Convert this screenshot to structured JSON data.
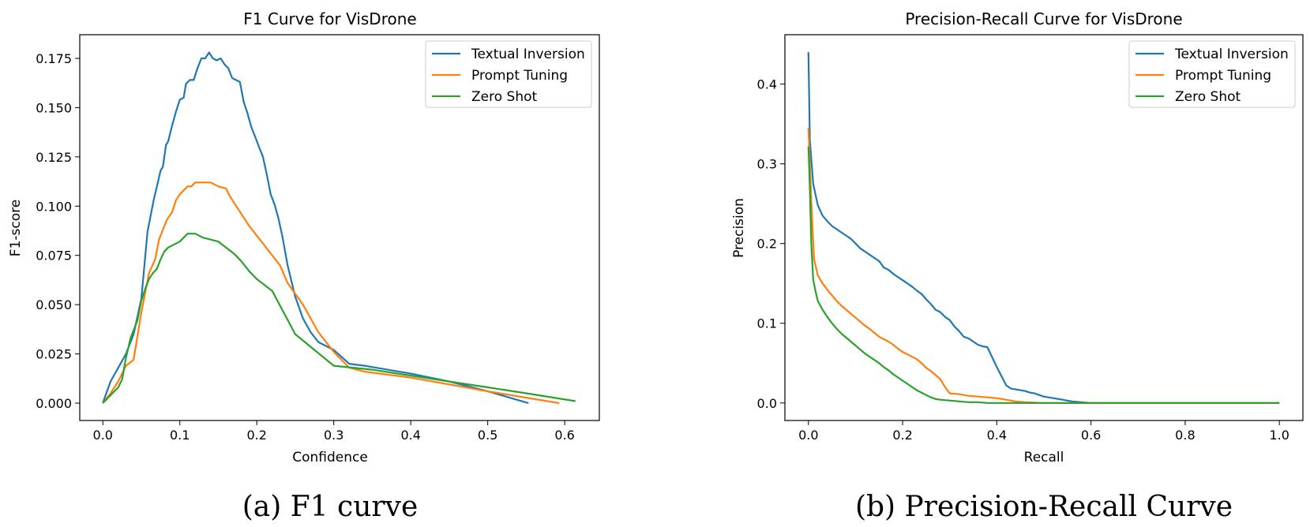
{
  "captions": [
    "(a) F1 curve",
    "(b) Precision-Recall Curve"
  ],
  "colors": {
    "textual_inversion": "#1f77b4",
    "prompt_tuning": "#ff7f0e",
    "zero_shot": "#2ca02c"
  },
  "chart_data": [
    {
      "type": "line",
      "title": "F1 Curve for VisDrone",
      "xlabel": "Confidence",
      "ylabel": "F1-score",
      "xlim": [
        -0.03,
        0.645
      ],
      "ylim": [
        -0.0088,
        0.187
      ],
      "xticks": [
        0.0,
        0.1,
        0.2,
        0.3,
        0.4,
        0.5,
        0.6
      ],
      "xtick_labels": [
        "0.0",
        "0.1",
        "0.2",
        "0.3",
        "0.4",
        "0.5",
        "0.6"
      ],
      "yticks": [
        0.0,
        0.025,
        0.05,
        0.075,
        0.1,
        0.125,
        0.15,
        0.175
      ],
      "ytick_labels": [
        "0.000",
        "0.025",
        "0.050",
        "0.075",
        "0.100",
        "0.125",
        "0.150",
        "0.175"
      ],
      "grid": false,
      "legend": "top-right",
      "series": [
        {
          "name": "Textual Inversion",
          "color": "#1f77b4",
          "x": [
            0.0,
            0.01,
            0.03,
            0.04,
            0.05,
            0.058,
            0.066,
            0.075,
            0.078,
            0.082,
            0.085,
            0.09,
            0.095,
            0.1,
            0.105,
            0.108,
            0.113,
            0.118,
            0.123,
            0.128,
            0.133,
            0.138,
            0.143,
            0.148,
            0.153,
            0.158,
            0.163,
            0.168,
            0.173,
            0.178,
            0.183,
            0.188,
            0.193,
            0.198,
            0.203,
            0.208,
            0.213,
            0.218,
            0.223,
            0.228,
            0.233,
            0.24,
            0.25,
            0.26,
            0.27,
            0.28,
            0.3,
            0.32,
            0.34,
            0.4,
            0.45,
            0.5,
            0.553
          ],
          "y": [
            0.0,
            0.011,
            0.025,
            0.035,
            0.053,
            0.087,
            0.103,
            0.118,
            0.12,
            0.131,
            0.133,
            0.141,
            0.148,
            0.154,
            0.155,
            0.162,
            0.164,
            0.164,
            0.17,
            0.175,
            0.175,
            0.178,
            0.175,
            0.174,
            0.175,
            0.172,
            0.17,
            0.165,
            0.164,
            0.163,
            0.153,
            0.147,
            0.14,
            0.135,
            0.13,
            0.125,
            0.116,
            0.106,
            0.101,
            0.094,
            0.085,
            0.07,
            0.054,
            0.043,
            0.036,
            0.031,
            0.027,
            0.02,
            0.019,
            0.015,
            0.011,
            0.006,
            0.0
          ]
        },
        {
          "name": "Prompt Tuning",
          "color": "#ff7f0e",
          "x": [
            0.0,
            0.01,
            0.02,
            0.03,
            0.04,
            0.05,
            0.06,
            0.068,
            0.073,
            0.078,
            0.083,
            0.09,
            0.095,
            0.1,
            0.105,
            0.11,
            0.115,
            0.12,
            0.13,
            0.14,
            0.15,
            0.16,
            0.165,
            0.17,
            0.18,
            0.19,
            0.2,
            0.21,
            0.22,
            0.23,
            0.24,
            0.26,
            0.28,
            0.3,
            0.32,
            0.34,
            0.4,
            0.5,
            0.593
          ],
          "y": [
            0.0,
            0.005,
            0.011,
            0.019,
            0.022,
            0.046,
            0.066,
            0.073,
            0.083,
            0.088,
            0.093,
            0.097,
            0.103,
            0.106,
            0.108,
            0.11,
            0.11,
            0.112,
            0.112,
            0.112,
            0.11,
            0.109,
            0.105,
            0.102,
            0.096,
            0.09,
            0.085,
            0.08,
            0.075,
            0.07,
            0.061,
            0.05,
            0.036,
            0.026,
            0.018,
            0.016,
            0.013,
            0.006,
            0.0
          ]
        },
        {
          "name": "Zero Shot",
          "color": "#2ca02c",
          "x": [
            0.0,
            0.01,
            0.02,
            0.025,
            0.03,
            0.036,
            0.04,
            0.045,
            0.05,
            0.055,
            0.06,
            0.065,
            0.07,
            0.075,
            0.08,
            0.085,
            0.09,
            0.1,
            0.11,
            0.12,
            0.13,
            0.14,
            0.15,
            0.16,
            0.17,
            0.18,
            0.19,
            0.2,
            0.22,
            0.25,
            0.3,
            0.35,
            0.4,
            0.45,
            0.5,
            0.55,
            0.614
          ],
          "y": [
            0.0,
            0.004,
            0.008,
            0.012,
            0.023,
            0.033,
            0.037,
            0.042,
            0.052,
            0.058,
            0.063,
            0.066,
            0.068,
            0.073,
            0.077,
            0.079,
            0.08,
            0.082,
            0.086,
            0.086,
            0.084,
            0.083,
            0.082,
            0.079,
            0.076,
            0.072,
            0.067,
            0.063,
            0.057,
            0.035,
            0.019,
            0.017,
            0.014,
            0.011,
            0.008,
            0.005,
            0.001
          ]
        }
      ]
    },
    {
      "type": "line",
      "title": "Precision-Recall Curve for VisDrone",
      "xlabel": "Recall",
      "ylabel": "Precision",
      "xlim": [
        -0.05,
        1.05
      ],
      "ylim": [
        -0.022,
        0.462
      ],
      "xticks": [
        0.0,
        0.2,
        0.4,
        0.6,
        0.8,
        1.0
      ],
      "xtick_labels": [
        "0.0",
        "0.2",
        "0.4",
        "0.6",
        "0.8",
        "1.0"
      ],
      "yticks": [
        0.0,
        0.1,
        0.2,
        0.3,
        0.4
      ],
      "ytick_labels": [
        "0.0",
        "0.1",
        "0.2",
        "0.3",
        "0.4"
      ],
      "grid": false,
      "legend": "top-right",
      "series": [
        {
          "name": "Textual Inversion",
          "color": "#1f77b4",
          "x": [
            0.0,
            0.003,
            0.01,
            0.02,
            0.03,
            0.04,
            0.05,
            0.06,
            0.07,
            0.08,
            0.09,
            0.1,
            0.11,
            0.12,
            0.13,
            0.14,
            0.15,
            0.16,
            0.17,
            0.18,
            0.19,
            0.2,
            0.21,
            0.22,
            0.23,
            0.24,
            0.25,
            0.26,
            0.27,
            0.28,
            0.29,
            0.3,
            0.31,
            0.32,
            0.33,
            0.34,
            0.35,
            0.36,
            0.37,
            0.38,
            0.4,
            0.42,
            0.43,
            0.44,
            0.45,
            0.46,
            0.47,
            0.48,
            0.49,
            0.5,
            0.52,
            0.54,
            0.56,
            0.58,
            0.6,
            0.7,
            0.8,
            0.9,
            1.0
          ],
          "y": [
            0.44,
            0.33,
            0.275,
            0.248,
            0.235,
            0.228,
            0.222,
            0.218,
            0.214,
            0.21,
            0.206,
            0.2,
            0.194,
            0.19,
            0.186,
            0.182,
            0.178,
            0.17,
            0.167,
            0.162,
            0.158,
            0.154,
            0.15,
            0.146,
            0.141,
            0.137,
            0.13,
            0.124,
            0.117,
            0.114,
            0.108,
            0.104,
            0.096,
            0.09,
            0.083,
            0.081,
            0.077,
            0.073,
            0.071,
            0.07,
            0.045,
            0.022,
            0.018,
            0.017,
            0.016,
            0.015,
            0.013,
            0.012,
            0.01,
            0.008,
            0.006,
            0.004,
            0.002,
            0.001,
            0.0,
            0.0,
            0.0,
            0.0,
            0.0
          ]
        },
        {
          "name": "Prompt Tuning",
          "color": "#ff7f0e",
          "x": [
            0.0,
            0.003,
            0.007,
            0.012,
            0.02,
            0.03,
            0.04,
            0.05,
            0.06,
            0.07,
            0.08,
            0.09,
            0.1,
            0.11,
            0.12,
            0.13,
            0.14,
            0.15,
            0.16,
            0.17,
            0.18,
            0.19,
            0.2,
            0.21,
            0.22,
            0.23,
            0.24,
            0.25,
            0.26,
            0.27,
            0.28,
            0.29,
            0.3,
            0.32,
            0.34,
            0.36,
            0.38,
            0.4,
            0.42,
            0.44,
            0.46,
            0.5,
            0.6,
            0.8,
            1.0
          ],
          "y": [
            0.345,
            0.3,
            0.24,
            0.18,
            0.16,
            0.15,
            0.142,
            0.135,
            0.128,
            0.122,
            0.117,
            0.112,
            0.107,
            0.102,
            0.097,
            0.093,
            0.088,
            0.083,
            0.08,
            0.077,
            0.073,
            0.068,
            0.064,
            0.061,
            0.058,
            0.055,
            0.05,
            0.044,
            0.04,
            0.035,
            0.03,
            0.02,
            0.012,
            0.011,
            0.009,
            0.008,
            0.007,
            0.006,
            0.004,
            0.002,
            0.001,
            0.0,
            0.0,
            0.0,
            0.0
          ]
        },
        {
          "name": "Zero Shot",
          "color": "#2ca02c",
          "x": [
            0.0,
            0.003,
            0.006,
            0.01,
            0.015,
            0.02,
            0.03,
            0.04,
            0.05,
            0.06,
            0.07,
            0.08,
            0.09,
            0.1,
            0.11,
            0.12,
            0.13,
            0.14,
            0.15,
            0.16,
            0.17,
            0.18,
            0.19,
            0.2,
            0.21,
            0.22,
            0.23,
            0.24,
            0.25,
            0.26,
            0.27,
            0.28,
            0.3,
            0.32,
            0.34,
            0.36,
            0.38,
            0.4,
            0.5,
            0.6,
            0.8,
            1.0
          ],
          "y": [
            0.322,
            0.27,
            0.2,
            0.155,
            0.14,
            0.128,
            0.117,
            0.108,
            0.1,
            0.093,
            0.087,
            0.082,
            0.077,
            0.072,
            0.067,
            0.062,
            0.058,
            0.054,
            0.05,
            0.045,
            0.041,
            0.036,
            0.032,
            0.028,
            0.024,
            0.02,
            0.016,
            0.013,
            0.01,
            0.007,
            0.005,
            0.004,
            0.003,
            0.002,
            0.001,
            0.001,
            0.0,
            0.0,
            0.0,
            0.0,
            0.0,
            0.0
          ]
        }
      ]
    }
  ]
}
